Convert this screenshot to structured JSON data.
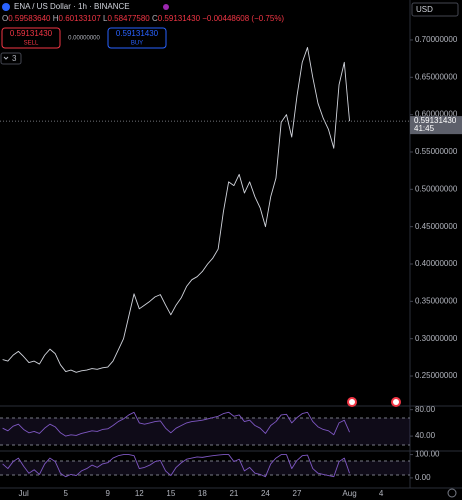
{
  "chart_data": [
    {
      "type": "line",
      "title": "ENA / US Dollar · 1h · BINANCE",
      "color": "#d1d4dc",
      "categories": [
        null,
        null,
        null,
        null,
        "Jul",
        null,
        null,
        null,
        null,
        null,
        null,
        null,
        "5",
        null,
        null,
        null,
        null,
        null,
        null,
        null,
        "9",
        null,
        null,
        null,
        null,
        null,
        "12",
        null,
        null,
        null,
        null,
        null,
        "15",
        null,
        null,
        null,
        null,
        null,
        "18",
        null,
        null,
        null,
        null,
        null,
        "21",
        null,
        null,
        null,
        null,
        null,
        "24",
        null,
        null,
        null,
        null,
        null,
        "27",
        null,
        null,
        null,
        null,
        null,
        null,
        null,
        null,
        null,
        "Aug",
        null,
        null,
        null,
        null,
        null,
        "4",
        null,
        null,
        null,
        null,
        null
      ],
      "values": [
        0.272,
        0.27,
        0.278,
        0.283,
        0.276,
        0.268,
        0.27,
        0.266,
        0.278,
        0.286,
        0.28,
        0.265,
        0.256,
        0.258,
        0.255,
        0.257,
        0.258,
        0.26,
        0.259,
        0.261,
        0.262,
        0.27,
        0.285,
        0.3,
        0.33,
        0.36,
        0.34,
        0.345,
        0.35,
        0.356,
        0.359,
        0.345,
        0.332,
        0.345,
        0.355,
        0.37,
        0.379,
        0.383,
        0.39,
        0.4,
        0.408,
        0.42,
        0.47,
        0.51,
        0.505,
        0.52,
        0.495,
        0.51,
        0.49,
        0.475,
        0.45,
        0.49,
        0.515,
        0.59,
        0.6,
        0.57,
        0.625,
        0.67,
        0.69,
        0.65,
        0.615,
        0.595,
        0.58,
        0.555,
        0.64,
        0.67,
        0.5913143,
        null,
        null,
        null,
        null,
        null,
        null,
        null,
        null,
        null,
        null,
        null
      ],
      "ylim": [
        0.2112,
        0.7535
      ],
      "yticks": [
        {
          "value": 0.25,
          "label": "0.25000000"
        },
        {
          "value": 0.3,
          "label": "0.30000000"
        },
        {
          "value": 0.35,
          "label": "0.35000000"
        },
        {
          "value": 0.4,
          "label": "0.40000000"
        },
        {
          "value": 0.45,
          "label": "0.45000000"
        },
        {
          "value": 0.5,
          "label": "0.50000000"
        },
        {
          "value": 0.55,
          "label": "0.55000000"
        },
        {
          "value": 0.6,
          "label": "0.60000000"
        },
        {
          "value": 0.65,
          "label": "0.65000000"
        },
        {
          "value": 0.7,
          "label": "0.70000000"
        }
      ],
      "grid": false
    },
    {
      "type": "line",
      "color": "#7e57c2",
      "values": [
        52,
        48,
        55,
        58,
        50,
        45,
        47,
        44,
        52,
        58,
        54,
        45,
        40,
        42,
        41,
        44,
        46,
        48,
        47,
        50,
        51,
        56,
        62,
        66,
        72,
        76,
        60,
        58,
        60,
        62,
        63,
        52,
        45,
        52,
        56,
        60,
        62,
        63,
        64,
        66,
        68,
        70,
        74,
        76,
        70,
        72,
        62,
        64,
        56,
        52,
        44,
        56,
        62,
        72,
        73,
        60,
        68,
        74,
        76,
        62,
        54,
        50,
        48,
        42,
        60,
        64,
        46,
        null,
        null,
        null,
        null,
        null,
        null,
        null,
        null,
        null,
        null,
        null
      ],
      "ylim": [
        19,
        84
      ],
      "yticks": [
        {
          "value": 80,
          "label": "80.00"
        },
        {
          "value": 40,
          "label": "40.00"
        }
      ],
      "grid": false
    },
    {
      "type": "line",
      "color": "#7e57c2",
      "values": [
        60,
        40,
        70,
        85,
        50,
        20,
        35,
        15,
        60,
        85,
        70,
        20,
        5,
        15,
        10,
        30,
        40,
        55,
        45,
        60,
        65,
        85,
        95,
        100,
        100,
        95,
        40,
        45,
        55,
        70,
        75,
        30,
        10,
        45,
        65,
        80,
        85,
        90,
        88,
        92,
        95,
        98,
        100,
        100,
        70,
        80,
        30,
        45,
        20,
        15,
        5,
        60,
        85,
        100,
        100,
        40,
        75,
        95,
        98,
        40,
        20,
        15,
        10,
        5,
        70,
        85,
        20,
        null,
        null,
        null,
        null,
        null,
        null,
        null,
        null,
        null,
        null,
        null
      ],
      "ylim": [
        -39,
        111
      ],
      "yticks": [
        {
          "value": 100,
          "label": "100.00"
        },
        {
          "value": 0,
          "label": "0.00"
        }
      ],
      "grid": false
    }
  ],
  "ui": {
    "ohlc": [
      {
        "k": "O",
        "v": "0.59583640"
      },
      {
        "k": "H",
        "v": "0.60133107"
      },
      {
        "k": "L",
        "v": "0.58477580"
      },
      {
        "k": "C",
        "v": "0.59131430"
      }
    ],
    "change": "−0.00448608 (−0.75%)",
    "sell": {
      "price": "0.59131430",
      "label": "SELL"
    },
    "spread": "0.00000000",
    "buy": {
      "price": "0.59131430",
      "label": "BUY"
    },
    "indicators": "3",
    "currency": "USD",
    "price_tag": {
      "price": "0.59131430",
      "countdown": "41:45"
    }
  }
}
